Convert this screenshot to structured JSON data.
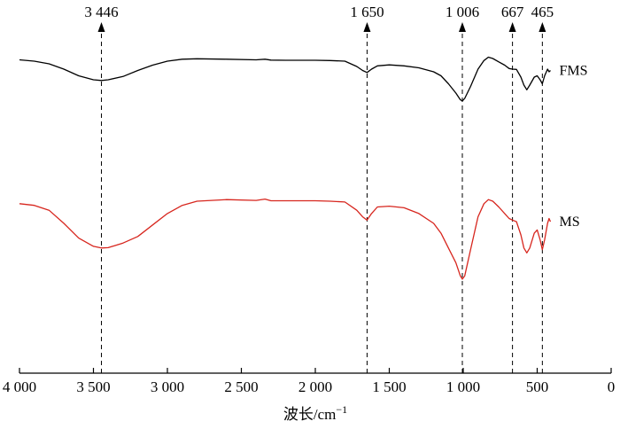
{
  "chart_data": {
    "type": "line",
    "title": "",
    "xlabel": "波长/cm",
    "xlabel_sup": "−1",
    "ylabel": "",
    "xlim": [
      4000,
      0
    ],
    "x_reversed": true,
    "grid": false,
    "x_ticks": [
      4000,
      3500,
      3000,
      2500,
      2000,
      1500,
      1000,
      500,
      0
    ],
    "x_tick_labels": [
      "4 000",
      "3 500",
      "3 000",
      "2 500",
      "2 000",
      "1 500",
      "1 000",
      "500",
      "0"
    ],
    "y_axis_shown": false,
    "peaks": [
      {
        "x": 3446,
        "label": "3 446"
      },
      {
        "x": 1650,
        "label": "1 650"
      },
      {
        "x": 1006,
        "label": "1 006"
      },
      {
        "x": 667,
        "label": "667"
      },
      {
        "x": 465,
        "label": "465"
      }
    ],
    "series": [
      {
        "name": "FMS",
        "color": "#000000",
        "points": [
          [
            4000,
            0.95
          ],
          [
            3900,
            0.94
          ],
          [
            3800,
            0.92
          ],
          [
            3700,
            0.88
          ],
          [
            3600,
            0.83
          ],
          [
            3500,
            0.8
          ],
          [
            3446,
            0.795
          ],
          [
            3400,
            0.8
          ],
          [
            3300,
            0.825
          ],
          [
            3200,
            0.87
          ],
          [
            3100,
            0.91
          ],
          [
            3000,
            0.94
          ],
          [
            2900,
            0.955
          ],
          [
            2800,
            0.958
          ],
          [
            2600,
            0.955
          ],
          [
            2400,
            0.95
          ],
          [
            2340,
            0.955
          ],
          [
            2300,
            0.948
          ],
          [
            2200,
            0.947
          ],
          [
            2000,
            0.947
          ],
          [
            1900,
            0.945
          ],
          [
            1800,
            0.94
          ],
          [
            1720,
            0.9
          ],
          [
            1680,
            0.87
          ],
          [
            1650,
            0.855
          ],
          [
            1620,
            0.88
          ],
          [
            1580,
            0.905
          ],
          [
            1500,
            0.912
          ],
          [
            1400,
            0.905
          ],
          [
            1300,
            0.89
          ],
          [
            1200,
            0.86
          ],
          [
            1150,
            0.83
          ],
          [
            1100,
            0.77
          ],
          [
            1050,
            0.7
          ],
          [
            1020,
            0.65
          ],
          [
            1006,
            0.64
          ],
          [
            990,
            0.66
          ],
          [
            950,
            0.75
          ],
          [
            900,
            0.88
          ],
          [
            860,
            0.945
          ],
          [
            830,
            0.97
          ],
          [
            800,
            0.96
          ],
          [
            760,
            0.935
          ],
          [
            720,
            0.91
          ],
          [
            690,
            0.885
          ],
          [
            667,
            0.88
          ],
          [
            640,
            0.878
          ],
          [
            610,
            0.82
          ],
          [
            590,
            0.76
          ],
          [
            570,
            0.725
          ],
          [
            550,
            0.76
          ],
          [
            520,
            0.82
          ],
          [
            500,
            0.83
          ],
          [
            480,
            0.8
          ],
          [
            465,
            0.77
          ],
          [
            450,
            0.83
          ],
          [
            430,
            0.88
          ],
          [
            420,
            0.86
          ],
          [
            410,
            0.87
          ]
        ]
      },
      {
        "name": "MS",
        "color": "#d7261e",
        "points": [
          [
            4000,
            0.92
          ],
          [
            3900,
            0.91
          ],
          [
            3800,
            0.88
          ],
          [
            3700,
            0.8
          ],
          [
            3600,
            0.71
          ],
          [
            3500,
            0.66
          ],
          [
            3446,
            0.65
          ],
          [
            3400,
            0.652
          ],
          [
            3300,
            0.68
          ],
          [
            3200,
            0.72
          ],
          [
            3100,
            0.79
          ],
          [
            3000,
            0.86
          ],
          [
            2900,
            0.91
          ],
          [
            2800,
            0.935
          ],
          [
            2600,
            0.945
          ],
          [
            2400,
            0.94
          ],
          [
            2340,
            0.948
          ],
          [
            2300,
            0.938
          ],
          [
            2200,
            0.938
          ],
          [
            2000,
            0.938
          ],
          [
            1900,
            0.935
          ],
          [
            1800,
            0.93
          ],
          [
            1720,
            0.88
          ],
          [
            1680,
            0.84
          ],
          [
            1650,
            0.82
          ],
          [
            1620,
            0.86
          ],
          [
            1580,
            0.9
          ],
          [
            1500,
            0.905
          ],
          [
            1400,
            0.895
          ],
          [
            1300,
            0.86
          ],
          [
            1200,
            0.8
          ],
          [
            1150,
            0.74
          ],
          [
            1100,
            0.65
          ],
          [
            1050,
            0.56
          ],
          [
            1020,
            0.48
          ],
          [
            1006,
            0.46
          ],
          [
            990,
            0.48
          ],
          [
            950,
            0.64
          ],
          [
            900,
            0.84
          ],
          [
            860,
            0.92
          ],
          [
            830,
            0.945
          ],
          [
            800,
            0.935
          ],
          [
            760,
            0.9
          ],
          [
            720,
            0.86
          ],
          [
            690,
            0.83
          ],
          [
            667,
            0.82
          ],
          [
            640,
            0.81
          ],
          [
            610,
            0.73
          ],
          [
            590,
            0.65
          ],
          [
            570,
            0.62
          ],
          [
            550,
            0.65
          ],
          [
            520,
            0.74
          ],
          [
            500,
            0.76
          ],
          [
            480,
            0.7
          ],
          [
            465,
            0.64
          ],
          [
            450,
            0.7
          ],
          [
            430,
            0.8
          ],
          [
            420,
            0.83
          ],
          [
            410,
            0.81
          ]
        ]
      }
    ]
  }
}
